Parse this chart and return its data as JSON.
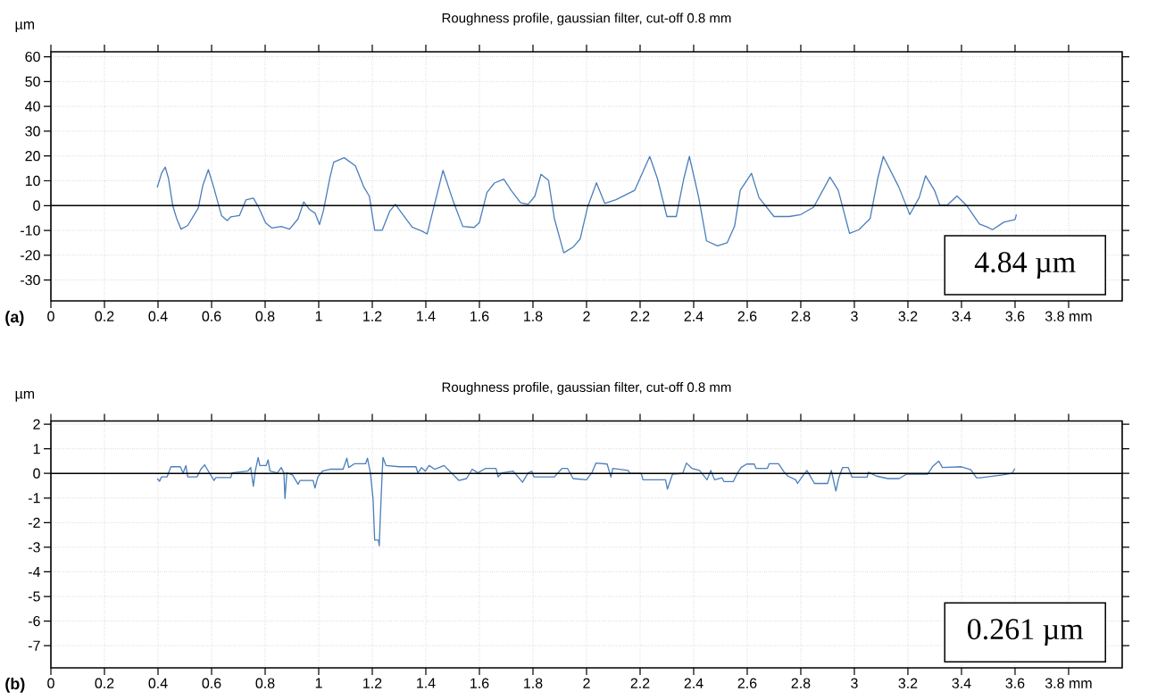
{
  "chart_data": [
    {
      "type": "line",
      "title": "Roughness profile, gaussian filter, cut-off 0.8 mm",
      "ylabel": "µm",
      "annotations": [
        "4.84 µm",
        "(a)"
      ],
      "xlim": [
        0,
        4.0
      ],
      "ylim": [
        -38.4,
        62
      ],
      "xticks": [
        0,
        0.2,
        0.4,
        0.6,
        0.8,
        1,
        1.2,
        1.4,
        1.6,
        1.8,
        2,
        2.2,
        2.4,
        2.6,
        2.8,
        3,
        3.2,
        3.4,
        3.6,
        {
          "value": 3.8,
          "label": "3.8 mm"
        }
      ],
      "yticks": [
        -30,
        -20,
        -10,
        0,
        10,
        20,
        30,
        40,
        50,
        60
      ],
      "grid": true,
      "ref_lines": [
        {
          "axis": "y",
          "value": 0,
          "color": "#000000"
        }
      ],
      "x": [
        0.397,
        0.413,
        0.427,
        0.439,
        0.455,
        0.469,
        0.486,
        0.511,
        0.55,
        0.567,
        0.588,
        0.609,
        0.637,
        0.658,
        0.672,
        0.704,
        0.728,
        0.756,
        0.777,
        0.802,
        0.825,
        0.86,
        0.891,
        0.923,
        0.944,
        0.965,
        0.986,
        1.003,
        1.017,
        1.042,
        1.056,
        1.095,
        1.137,
        1.168,
        1.189,
        1.209,
        1.237,
        1.265,
        1.286,
        1.321,
        1.349,
        1.384,
        1.405,
        1.433,
        1.464,
        1.503,
        1.538,
        1.58,
        1.6,
        1.628,
        1.656,
        1.691,
        1.719,
        1.754,
        1.782,
        1.807,
        1.83,
        1.858,
        1.88,
        1.915,
        1.95,
        1.976,
        2.004,
        2.037,
        2.068,
        2.11,
        2.18,
        2.236,
        2.265,
        2.3,
        2.335,
        2.363,
        2.384,
        2.419,
        2.448,
        2.489,
        2.525,
        2.553,
        2.574,
        2.616,
        2.644,
        2.7,
        2.757,
        2.8,
        2.848,
        2.909,
        2.94,
        2.982,
        3.017,
        3.059,
        3.087,
        3.108,
        3.165,
        3.207,
        3.242,
        3.266,
        3.299,
        3.319,
        3.347,
        3.383,
        3.418,
        3.467,
        3.495,
        3.516,
        3.558,
        3.6,
        3.605
      ],
      "series": [
        {
          "color": "#4a7ebb",
          "values": [
            7.3,
            13,
            15.5,
            11,
            0,
            -5,
            -9.5,
            -8,
            -1,
            8,
            14.5,
            7,
            -4,
            -6,
            -4.5,
            -4,
            2.3,
            3,
            -1,
            -7,
            -9,
            -8.4,
            -9.5,
            -5.3,
            1.5,
            -1.5,
            -3,
            -7.6,
            -2.3,
            11.4,
            17.5,
            19.3,
            16,
            7.6,
            3.8,
            -9.9,
            -9.9,
            -2.3,
            0.5,
            -4.6,
            -8.7,
            -10.2,
            -11.4,
            0.8,
            14.2,
            1.5,
            -8.4,
            -8.8,
            -6.8,
            5.3,
            9.1,
            10.7,
            6.1,
            1.1,
            0.5,
            3.8,
            12.6,
            10.2,
            -5.3,
            -19,
            -16.7,
            -13.5,
            -0.6,
            9.2,
            0.9,
            2.4,
            6.2,
            19.8,
            10.8,
            -4.4,
            -4.4,
            10.8,
            19.8,
            3.2,
            -14.2,
            -16.2,
            -15,
            -8.2,
            6.2,
            13,
            3.2,
            -4.4,
            -4.4,
            -3.6,
            -0.6,
            11.5,
            6.2,
            -11.2,
            -9.7,
            -5.2,
            10.8,
            19.8,
            7.7,
            -3.6,
            3.2,
            12,
            6.2,
            0.2,
            0.2,
            3.9,
            0.2,
            -7.4,
            -8.6,
            -9.7,
            -6.7,
            -5.6,
            -3.6
          ]
        }
      ]
    },
    {
      "type": "line",
      "title": "Roughness profile, gaussian filter, cut-off 0.8 mm",
      "ylabel": "µm",
      "annotations": [
        "0.261 µm",
        "(b)"
      ],
      "xlim": [
        0,
        4.0
      ],
      "ylim": [
        -7.9,
        2.13
      ],
      "xticks": [
        0,
        0.2,
        0.4,
        0.6,
        0.8,
        1,
        1.2,
        1.4,
        1.6,
        1.8,
        2,
        2.2,
        2.4,
        2.6,
        2.8,
        3,
        3.2,
        3.4,
        3.6,
        {
          "value": 3.8,
          "label": "3.8 mm"
        }
      ],
      "yticks": [
        -7,
        -6,
        -5,
        -4,
        -3,
        -2,
        -1,
        0,
        1,
        2
      ],
      "grid": true,
      "ref_lines": [
        {
          "axis": "y",
          "value": 0,
          "color": "#000000"
        }
      ],
      "x": [
        0.397,
        0.406,
        0.413,
        0.434,
        0.448,
        0.483,
        0.494,
        0.504,
        0.511,
        0.546,
        0.56,
        0.574,
        0.588,
        0.609,
        0.616,
        0.672,
        0.676,
        0.735,
        0.746,
        0.756,
        0.763,
        0.774,
        0.78,
        0.804,
        0.811,
        0.818,
        0.846,
        0.86,
        0.87,
        0.874,
        0.881,
        0.902,
        0.923,
        0.93,
        0.979,
        0.986,
        0.997,
        1.014,
        1.042,
        1.091,
        1.098,
        1.105,
        1.112,
        1.133,
        1.175,
        1.182,
        1.193,
        1.203,
        1.209,
        1.223,
        1.226,
        1.23,
        1.237,
        1.24,
        1.251,
        1.3,
        1.363,
        1.37,
        1.384,
        1.398,
        1.412,
        1.433,
        1.468,
        1.489,
        1.503,
        1.524,
        1.552,
        1.573,
        1.594,
        1.622,
        1.662,
        1.67,
        1.684,
        1.726,
        1.761,
        1.782,
        1.796,
        1.803,
        1.88,
        1.908,
        1.929,
        1.95,
        2.0,
        2.021,
        2.035,
        2.077,
        2.091,
        2.098,
        2.155,
        2.162,
        2.204,
        2.211,
        2.295,
        2.302,
        2.321,
        2.359,
        2.373,
        2.394,
        2.422,
        2.45,
        2.464,
        2.478,
        2.506,
        2.513,
        2.548,
        2.563,
        2.577,
        2.598,
        2.626,
        2.633,
        2.675,
        2.682,
        2.717,
        2.738,
        2.752,
        2.781,
        2.788,
        2.802,
        2.823,
        2.851,
        2.9,
        2.914,
        2.931,
        2.942,
        2.956,
        2.977,
        2.991,
        3.048,
        3.052,
        3.083,
        3.125,
        3.167,
        3.195,
        3.223,
        3.273,
        3.294,
        3.315,
        3.329,
        3.4,
        3.435,
        3.456,
        3.47,
        3.554,
        3.589,
        3.599
      ],
      "series": [
        {
          "color": "#4a7ebb",
          "values": [
            -0.21,
            -0.32,
            -0.14,
            -0.14,
            0.27,
            0.27,
            0.02,
            0.32,
            -0.14,
            -0.14,
            0.17,
            0.35,
            0.09,
            -0.29,
            -0.17,
            -0.17,
            0.02,
            0.09,
            0.24,
            -0.52,
            0.09,
            0.65,
            0.32,
            0.32,
            0.55,
            0.09,
            0.02,
            0.24,
            0.02,
            -1.02,
            0.02,
            -0.06,
            -0.44,
            -0.29,
            -0.29,
            -0.59,
            -0.14,
            0.09,
            0.17,
            0.17,
            0.39,
            0.62,
            0.24,
            0.39,
            0.39,
            0.62,
            0.02,
            -1.05,
            -2.71,
            -2.71,
            -2.94,
            -1.8,
            0.02,
            0.65,
            0.32,
            0.27,
            0.27,
            0.02,
            0.24,
            0.09,
            0.32,
            0.17,
            0.32,
            0.09,
            -0.06,
            -0.29,
            -0.21,
            0.17,
            0.02,
            0.2,
            0.2,
            -0.14,
            0.02,
            0.09,
            -0.36,
            0.02,
            0.09,
            -0.14,
            -0.14,
            0.2,
            0.2,
            -0.21,
            -0.26,
            0.05,
            0.42,
            0.38,
            -0.15,
            0.2,
            0.12,
            0,
            0,
            -0.26,
            -0.26,
            -0.64,
            -0.03,
            0,
            0.42,
            0.2,
            0.12,
            -0.26,
            0.12,
            -0.26,
            -0.18,
            -0.33,
            -0.33,
            0,
            0.24,
            0.38,
            0.38,
            0.2,
            0.2,
            0.39,
            0.39,
            0.05,
            -0.11,
            -0.26,
            -0.41,
            -0.18,
            0.12,
            -0.41,
            -0.41,
            0.12,
            -0.71,
            -0.18,
            0.24,
            0.24,
            -0.15,
            -0.15,
            0.05,
            -0.11,
            -0.21,
            -0.21,
            -0.03,
            -0.03,
            -0.03,
            0.3,
            0.5,
            0.24,
            0.27,
            0.15,
            -0.18,
            -0.18,
            -0.06,
            0,
            0.2
          ]
        }
      ]
    }
  ]
}
